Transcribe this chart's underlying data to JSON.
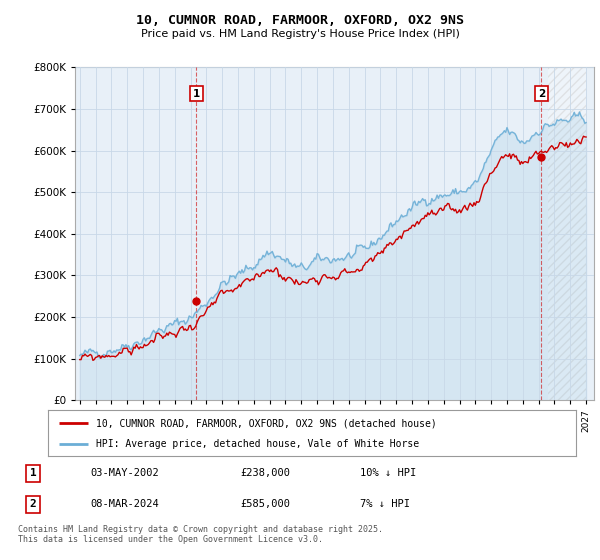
{
  "title": "10, CUMNOR ROAD, FARMOOR, OXFORD, OX2 9NS",
  "subtitle": "Price paid vs. HM Land Registry's House Price Index (HPI)",
  "bg_color": "#ffffff",
  "plot_bg_color": "#e8f0f8",
  "grid_color": "#c8d8e8",
  "sale1_date": "03-MAY-2002",
  "sale1_price": 238000,
  "sale1_year": 2002.37,
  "sale2_date": "08-MAR-2024",
  "sale2_price": 585000,
  "sale2_year": 2024.18,
  "legend_property": "10, CUMNOR ROAD, FARMOOR, OXFORD, OX2 9NS (detached house)",
  "legend_hpi": "HPI: Average price, detached house, Vale of White Horse",
  "footer": "Contains HM Land Registry data © Crown copyright and database right 2025.\nThis data is licensed under the Open Government Licence v3.0.",
  "property_color": "#cc0000",
  "hpi_color": "#6baed6",
  "ylim_max": 800000,
  "ylim_min": 0,
  "sale1_hpi_text": "10% ↓ HPI",
  "sale2_hpi_text": "7% ↓ HPI",
  "xmin": 1995,
  "xmax": 2027
}
